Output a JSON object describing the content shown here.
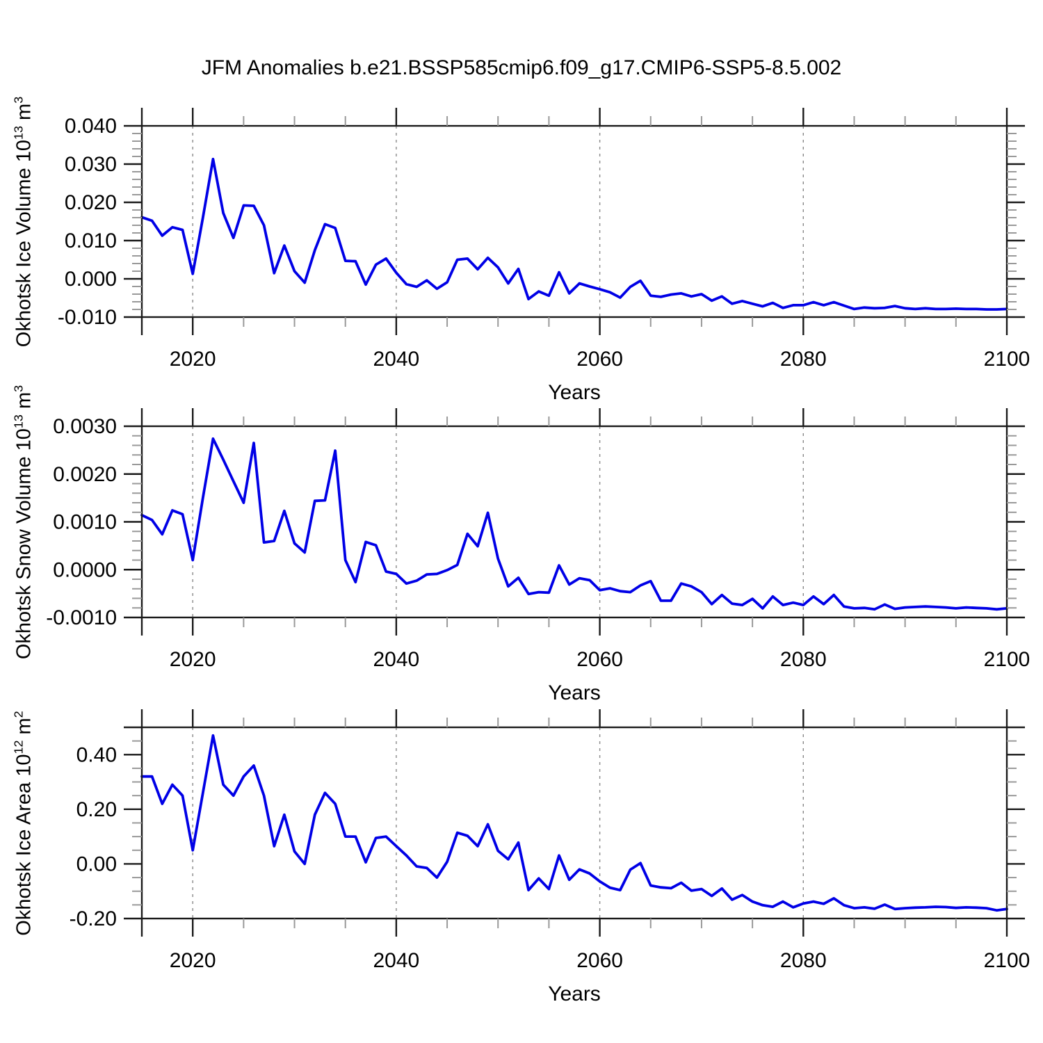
{
  "title": "JFM Anomalies b.e21.BSSP585cmip6.f09_g17.CMIP6-SSP5-8.5.002",
  "chart_data": {
    "type": "line",
    "line_color": "#0000e6",
    "grid_color": "#888888",
    "xlabel": "Years",
    "xticks": [
      2020,
      2040,
      2060,
      2080,
      2100
    ],
    "xtick_labels": [
      "2020",
      "2040",
      "2060",
      "2080",
      "2100"
    ],
    "xminor_step": 5,
    "grid_x_dashed_at": [
      2020,
      2040,
      2060,
      2080
    ],
    "xlim": [
      2015,
      2100
    ],
    "years": [
      2015,
      2016,
      2017,
      2018,
      2019,
      2020,
      2021,
      2022,
      2023,
      2024,
      2025,
      2026,
      2027,
      2028,
      2029,
      2030,
      2031,
      2032,
      2033,
      2034,
      2035,
      2036,
      2037,
      2038,
      2039,
      2040,
      2041,
      2042,
      2043,
      2044,
      2045,
      2046,
      2047,
      2048,
      2049,
      2050,
      2051,
      2052,
      2053,
      2054,
      2055,
      2056,
      2057,
      2058,
      2059,
      2060,
      2061,
      2062,
      2063,
      2064,
      2065,
      2066,
      2067,
      2068,
      2069,
      2070,
      2071,
      2072,
      2073,
      2074,
      2075,
      2076,
      2077,
      2078,
      2079,
      2080,
      2081,
      2082,
      2083,
      2084,
      2085,
      2086,
      2087,
      2088,
      2089,
      2090,
      2091,
      2092,
      2093,
      2094,
      2095,
      2096,
      2097,
      2098,
      2099,
      2100
    ],
    "panels": [
      {
        "id": "ice-volume",
        "name": "Okhotsk Ice Volume anomaly",
        "ylabel_prefix": "Okhotsk Ice Volume 10",
        "ylabel_power": "13",
        "ylabel_unit": " m",
        "ylabel_unit_power": "3",
        "ylim": [
          -0.01,
          0.04
        ],
        "ytick_values": [
          0.04,
          0.03,
          0.02,
          0.01,
          0.0,
          -0.01
        ],
        "ytick_labels": [
          "0.040",
          "0.030",
          "0.020",
          "0.010",
          "0.000",
          "-0.010"
        ],
        "yminor_step": 0.002,
        "values": [
          0.0161,
          0.0152,
          0.0113,
          0.0135,
          0.0128,
          0.0013,
          0.016,
          0.0313,
          0.0172,
          0.0107,
          0.0192,
          0.0191,
          0.014,
          0.0015,
          0.0087,
          0.002,
          -0.001,
          0.0075,
          0.0143,
          0.0133,
          0.0047,
          0.0046,
          -0.0015,
          0.0037,
          0.0053,
          0.0016,
          -0.0014,
          -0.0021,
          -0.0004,
          -0.0026,
          -0.0009,
          0.005,
          0.0053,
          0.0025,
          0.0055,
          0.003,
          -0.0012,
          0.0026,
          -0.0053,
          -0.0033,
          -0.0044,
          0.0017,
          -0.0038,
          -0.0012,
          -0.002,
          -0.0027,
          -0.0035,
          -0.0049,
          -0.0021,
          -0.0005,
          -0.0044,
          -0.0047,
          -0.0041,
          -0.0038,
          -0.0046,
          -0.004,
          -0.0057,
          -0.0046,
          -0.0065,
          -0.0058,
          -0.0065,
          -0.0072,
          -0.0063,
          -0.0076,
          -0.0069,
          -0.0069,
          -0.0061,
          -0.0069,
          -0.0061,
          -0.007,
          -0.0079,
          -0.0075,
          -0.0077,
          -0.0076,
          -0.0071,
          -0.0077,
          -0.0079,
          -0.0077,
          -0.0079,
          -0.0079,
          -0.0078,
          -0.0079,
          -0.0079,
          -0.008,
          -0.008,
          -0.0079
        ]
      },
      {
        "id": "snow-volume",
        "name": "Okhotsk Snow Volume anomaly",
        "ylabel_prefix": "Okhotsk Snow Volume 10",
        "ylabel_power": "13",
        "ylabel_unit": " m",
        "ylabel_unit_power": "3",
        "ylim": [
          -0.001,
          0.003
        ],
        "ytick_values": [
          0.003,
          0.002,
          0.001,
          0.0,
          -0.001
        ],
        "ytick_labels": [
          "0.0030",
          "0.0020",
          "0.0010",
          "0.0000",
          "-0.0010"
        ],
        "yminor_step": 0.0002,
        "values": [
          0.00114,
          0.00104,
          0.00074,
          0.00124,
          0.00116,
          0.0002,
          0.0015,
          0.00274,
          0.0023,
          0.00185,
          0.0014,
          0.00265,
          0.00057,
          0.0006,
          0.00123,
          0.00055,
          0.00036,
          0.00144,
          0.00145,
          0.00249,
          0.0002,
          -0.00026,
          0.00058,
          0.00051,
          -4e-05,
          -9e-05,
          -0.00029,
          -0.00023,
          -0.0001,
          -9e-05,
          -1e-05,
          0.0001,
          0.00075,
          0.00049,
          0.00119,
          0.00023,
          -0.00035,
          -0.00017,
          -0.00051,
          -0.00047,
          -0.00048,
          9e-05,
          -0.00031,
          -0.00018,
          -0.00022,
          -0.00043,
          -0.00039,
          -0.00045,
          -0.00047,
          -0.00033,
          -0.00024,
          -0.00065,
          -0.00065,
          -0.00029,
          -0.00035,
          -0.00047,
          -0.00072,
          -0.00053,
          -0.00071,
          -0.00074,
          -0.00061,
          -0.00081,
          -0.00056,
          -0.00074,
          -0.00069,
          -0.00074,
          -0.00056,
          -0.00072,
          -0.00053,
          -0.00077,
          -0.00081,
          -0.0008,
          -0.00083,
          -0.00073,
          -0.00082,
          -0.00079,
          -0.00078,
          -0.00077,
          -0.00078,
          -0.00079,
          -0.00081,
          -0.00079,
          -0.0008,
          -0.00081,
          -0.00083,
          -0.00081
        ]
      },
      {
        "id": "ice-area",
        "name": "Okhotsk Ice Area anomaly",
        "ylabel_prefix": "Okhotsk Ice Area 10",
        "ylabel_power": "12",
        "ylabel_unit": " m",
        "ylabel_unit_power": "2",
        "ylim": [
          -0.2,
          0.5
        ],
        "ytick_values": [
          0.4,
          0.2,
          0.0,
          -0.2
        ],
        "ytick_labels": [
          "0.40",
          "0.20",
          "0.00",
          "-0.20"
        ],
        "yminor_step": 0.05,
        "values": [
          0.32,
          0.32,
          0.22,
          0.29,
          0.25,
          0.05,
          0.26,
          0.47,
          0.29,
          0.25,
          0.32,
          0.36,
          0.25,
          0.065,
          0.18,
          0.046,
          0.0,
          0.18,
          0.26,
          0.22,
          0.1,
          0.1,
          0.006,
          0.095,
          0.1,
          0.065,
          0.031,
          -0.009,
          -0.015,
          -0.05,
          0.008,
          0.114,
          0.103,
          0.065,
          0.145,
          0.048,
          0.017,
          0.078,
          -0.096,
          -0.053,
          -0.092,
          0.031,
          -0.058,
          -0.02,
          -0.035,
          -0.064,
          -0.087,
          -0.096,
          -0.021,
          0.003,
          -0.079,
          -0.086,
          -0.089,
          -0.069,
          -0.098,
          -0.092,
          -0.117,
          -0.09,
          -0.131,
          -0.114,
          -0.138,
          -0.151,
          -0.157,
          -0.138,
          -0.159,
          -0.145,
          -0.138,
          -0.146,
          -0.126,
          -0.151,
          -0.162,
          -0.159,
          -0.164,
          -0.149,
          -0.165,
          -0.162,
          -0.16,
          -0.159,
          -0.157,
          -0.158,
          -0.161,
          -0.159,
          -0.16,
          -0.162,
          -0.17,
          -0.165
        ]
      }
    ]
  }
}
